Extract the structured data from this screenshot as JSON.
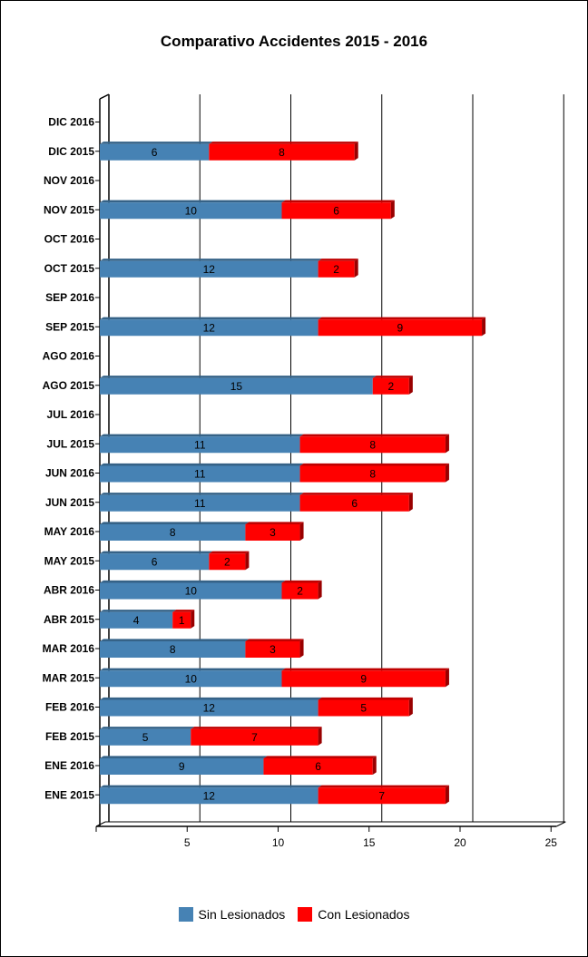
{
  "chart_data": {
    "type": "bar",
    "orientation": "horizontal",
    "stacked": true,
    "title": "Comparativo Accidentes 2015 - 2016",
    "categories": [
      "DIC 2016",
      "DIC 2015",
      "NOV 2016",
      "NOV 2015",
      "OCT 2016",
      "OCT 2015",
      "SEP 2016",
      "SEP 2015",
      "AGO 2016",
      "AGO 2015",
      "JUL 2016",
      "JUL 2015",
      "JUN 2016",
      "JUN 2015",
      "MAY 2016",
      "MAY 2015",
      "ABR 2016",
      "ABR 2015",
      "MAR 2016",
      "MAR 2015",
      "FEB 2016",
      "FEB 2015",
      "ENE 2016",
      "ENE 2015"
    ],
    "series": [
      {
        "name": "Sin Lesionados",
        "color": "#4682b4",
        "values": [
          null,
          6,
          null,
          10,
          null,
          12,
          null,
          12,
          null,
          15,
          null,
          11,
          11,
          11,
          8,
          6,
          10,
          4,
          8,
          10,
          12,
          5,
          9,
          12
        ]
      },
      {
        "name": "Con Lesionados",
        "color": "#ff0000",
        "values": [
          null,
          8,
          null,
          6,
          null,
          2,
          null,
          9,
          null,
          2,
          null,
          8,
          8,
          6,
          3,
          2,
          2,
          1,
          3,
          9,
          5,
          7,
          6,
          7
        ]
      }
    ],
    "xlim": [
      0,
      25
    ],
    "xticks": [
      "5",
      "10",
      "15",
      "20",
      "25"
    ],
    "grid": true,
    "legend": "bottom"
  }
}
